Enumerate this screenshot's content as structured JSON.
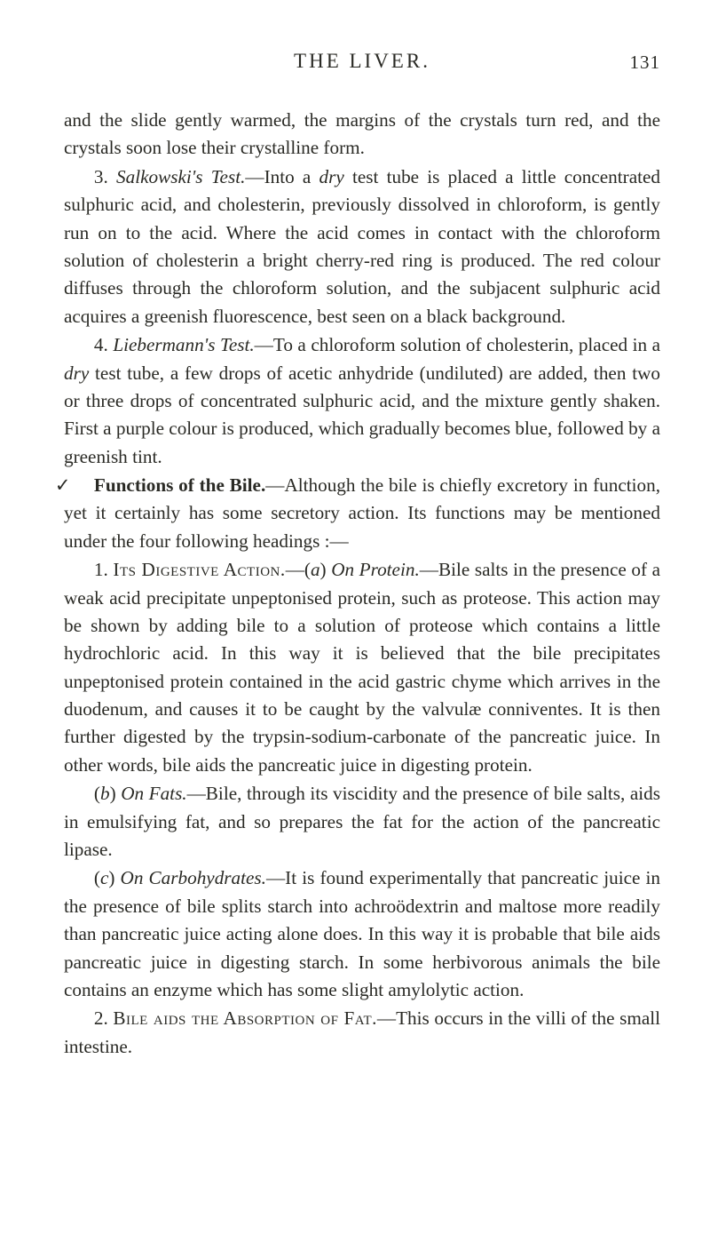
{
  "header": {
    "running_title": "THE LIVER.",
    "page_number": "131"
  },
  "body": {
    "p1": "and the slide gently warmed, the margins of the crystals turn red, and the crystals soon lose their crystalline form.",
    "p2_lead": "3. ",
    "p2_ital": "Salkowski's Test.",
    "p2_rest": "—Into a ",
    "p2_ital2": "dry",
    "p2_rest2": " test tube is placed a little concentrated sulphuric acid, and cholesterin, previously dissolved in chloroform, is gently run on to the acid. Where the acid comes in contact with the chloroform solution of cholesterin a bright cherry-red ring is produced. The red colour diffuses through the chloroform solution, and the subjacent sulphuric acid acquires a greenish fluorescence, best seen on a black background.",
    "p3_lead": "4. ",
    "p3_ital": "Liebermann's Test.",
    "p3_rest": "—To a chloroform solution of cholesterin, placed in a ",
    "p3_ital2": "dry",
    "p3_rest2": " test tube, a few drops of acetic anhydride (undiluted) are added, then two or three drops of concentrated sulphuric acid, and the mixture gently shaken. First a purple colour is produced, which gradually becomes blue, followed by a greenish tint.",
    "p4_tick": "✓",
    "p4_bold": "Functions of the Bile.",
    "p4_rest": "—Although the bile is chiefly excretory in function, yet it certainly has some secretory action. Its functions may be mentioned under the four following headings :—",
    "p5_lead": "1. ",
    "p5_caps1": "Its Digestive Action.",
    "p5_dash": "—(",
    "p5_ital_a": "a",
    "p5_paren": ") ",
    "p5_ital_onprot": "On Protein.",
    "p5_rest": "—Bile salts in the presence of a weak acid precipitate unpeptonised protein, such as proteose. This action may be shown by adding bile to a solution of proteose which contains a little hydrochloric acid. In this way it is believed that the bile precipitates unpeptonised protein contained in the acid gastric chyme which arrives in the duodenum, and causes it to be caught by the valvulæ conniventes. It is then further digested by the trypsin-sodium-carbonate of the pancreatic juice. In other words, bile aids the pancreatic juice in digesting protein.",
    "p6_lead": "(",
    "p6_ital_b": "b",
    "p6_paren": ") ",
    "p6_ital_onfats": "On Fats.",
    "p6_rest": "—Bile, through its viscidity and the presence of bile salts, aids in emulsifying fat, and so prepares the fat for the action of the pancreatic lipase.",
    "p7_lead": "(",
    "p7_ital_c": "c",
    "p7_paren": ") ",
    "p7_ital_oncarb": "On Carbohydrates.",
    "p7_rest": "—It is found experimentally that pancreatic juice in the presence of bile splits starch into achroödextrin and maltose more readily than pancreatic juice acting alone does. In this way it is probable that bile aids pancreatic juice in digesting starch. In some herbivorous animals the bile contains an enzyme which has some slight amylolytic action.",
    "p8_lead": "2. ",
    "p8_caps": "Bile aids the Absorption of Fat.",
    "p8_rest": "—This occurs in the villi of the small intestine."
  }
}
